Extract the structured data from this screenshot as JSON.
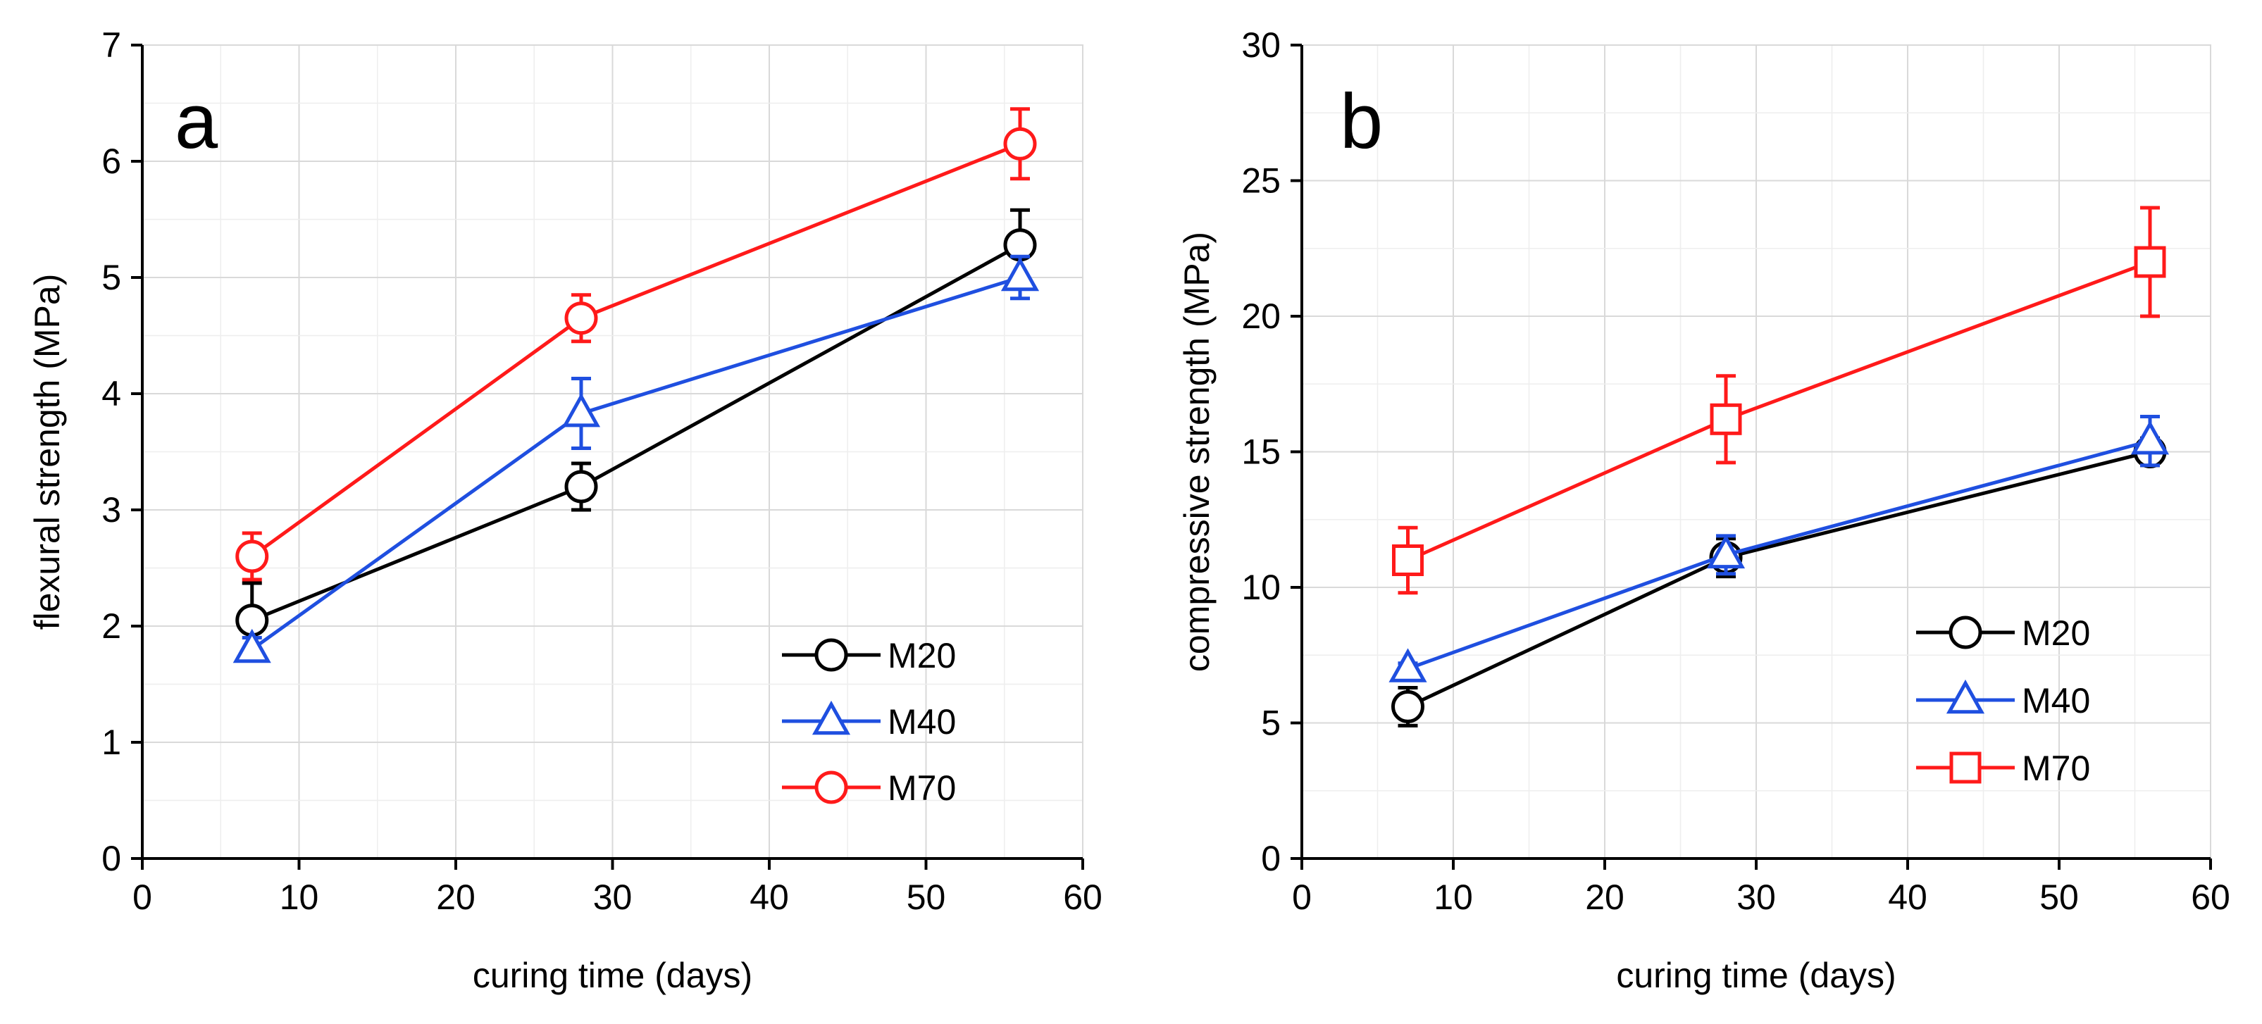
{
  "chart_data": [
    {
      "type": "line",
      "panel_label": "a",
      "xlabel": "curing time (days)",
      "ylabel": "flexural strength (MPa)",
      "xlim": [
        0,
        60
      ],
      "ylim": [
        0,
        7
      ],
      "xticks": [
        0,
        10,
        20,
        30,
        40,
        50,
        60
      ],
      "yticks": [
        0,
        1,
        2,
        3,
        4,
        5,
        6,
        7
      ],
      "grid": true,
      "legend_position": "bottom-right",
      "series": [
        {
          "name": "M20",
          "color": "#000000",
          "marker": "circle",
          "x": [
            7,
            28,
            56
          ],
          "y": [
            2.05,
            3.2,
            5.28
          ],
          "err": [
            0.32,
            0.2,
            0.3
          ]
        },
        {
          "name": "M40",
          "color": "#1f4fe0",
          "marker": "triangle",
          "x": [
            7,
            28,
            56
          ],
          "y": [
            1.8,
            3.83,
            5.0
          ],
          "err": [
            0.1,
            0.3,
            0.18
          ]
        },
        {
          "name": "M70",
          "color": "#ff1a1a",
          "marker": "circle",
          "x": [
            7,
            28,
            56
          ],
          "y": [
            2.6,
            4.65,
            6.15
          ],
          "err": [
            0.2,
            0.2,
            0.3
          ]
        }
      ]
    },
    {
      "type": "line",
      "panel_label": "b",
      "xlabel": "curing time (days)",
      "ylabel": "compressive strength (MPa)",
      "xlim": [
        0,
        60
      ],
      "ylim": [
        0,
        30
      ],
      "xticks": [
        0,
        10,
        20,
        30,
        40,
        50,
        60
      ],
      "yticks": [
        0,
        5,
        10,
        15,
        20,
        25,
        30
      ],
      "grid": true,
      "legend_position": "bottom-right",
      "series": [
        {
          "name": "M20",
          "color": "#000000",
          "marker": "circle",
          "x": [
            7,
            28,
            56
          ],
          "y": [
            5.6,
            11.1,
            15.0
          ],
          "err": [
            0.7,
            0.7,
            0.5
          ]
        },
        {
          "name": "M40",
          "color": "#1f4fe0",
          "marker": "triangle",
          "x": [
            7,
            28,
            56
          ],
          "y": [
            7.0,
            11.2,
            15.4
          ],
          "err": [
            0.2,
            0.7,
            0.9
          ]
        },
        {
          "name": "M70",
          "color": "#ff1a1a",
          "marker": "square",
          "x": [
            7,
            28,
            56
          ],
          "y": [
            11.0,
            16.2,
            22.0
          ],
          "err": [
            1.2,
            1.6,
            2.0
          ]
        }
      ]
    }
  ]
}
